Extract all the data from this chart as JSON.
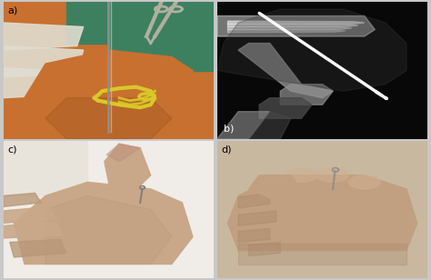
{
  "figure_bg": "#c8c8c8",
  "panel_labels": [
    "a)",
    "b)",
    "c)",
    "d)"
  ],
  "panel_label_color_dark": "#000000",
  "panel_label_color_light": "#ffffff",
  "panel_label_fontsize": 8,
  "panel_a": {
    "teal_bg": "#3d8060",
    "skin_orange": "#c87030",
    "skin_light": "#e8a060",
    "skin_pale": "#f0c090",
    "glove_white": "#e0ddd0",
    "suture_yellow": "#d8c828",
    "needle_gray": "#909090",
    "instrument_silver": "#b0b0a0",
    "wrist_dark": "#a05820"
  },
  "panel_b": {
    "bg_dark": "#080808",
    "bone_bright": "#e0e0e0",
    "bone_mid": "#909090",
    "bone_dark": "#484848",
    "wire_white": "#f8f8f8",
    "tissue_gray": "#383838"
  },
  "panel_c": {
    "bg_white": "#f0ede8",
    "bg_cloth": "#e8e4dc",
    "skin_main": "#c8a888",
    "skin_dark": "#b89878",
    "skin_tip": "#c09080",
    "pin_gray": "#808080"
  },
  "panel_d": {
    "bg_tan": "#c8b8a0",
    "skin_main": "#c0a080",
    "skin_dark": "#a88868",
    "skin_light": "#d0b090",
    "pin_gray": "#909090"
  }
}
